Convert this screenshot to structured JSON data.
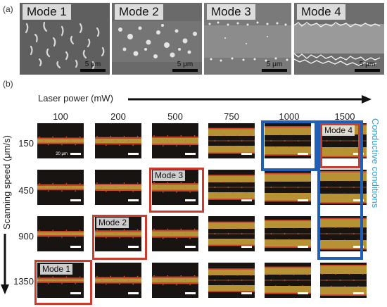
{
  "panel_a": {
    "letter": "(a)",
    "images": [
      {
        "label": "Mode 1",
        "scale": "5 μm"
      },
      {
        "label": "Mode 2",
        "scale": "5 μm"
      },
      {
        "label": "Mode 3",
        "scale": "5 μm"
      },
      {
        "label": "Mode 4",
        "scale": "5 μm"
      }
    ]
  },
  "panel_b": {
    "letter": "(b)",
    "x_axis_title": "Laser power (mW)",
    "y_axis_title": "Scanning speed (μm/s)",
    "columns": [
      "100",
      "200",
      "500",
      "750",
      "1000",
      "1500"
    ],
    "rows": [
      "150",
      "450",
      "900",
      "1350"
    ],
    "tile_scale": "20 μm",
    "conductive_label": "Conductive conditions",
    "modes": [
      {
        "label": "Mode 1",
        "row": 3,
        "col": 0
      },
      {
        "label": "Mode 2",
        "row": 2,
        "col": 1
      },
      {
        "label": "Mode 3",
        "row": 1,
        "col": 2
      },
      {
        "label": "Mode 4",
        "row": 0,
        "col": 5
      }
    ],
    "colors": {
      "mode_frame": "#cc3b2e",
      "conductive_frame": "#1f5fb5",
      "conductive_text": "#22a6d8"
    }
  }
}
